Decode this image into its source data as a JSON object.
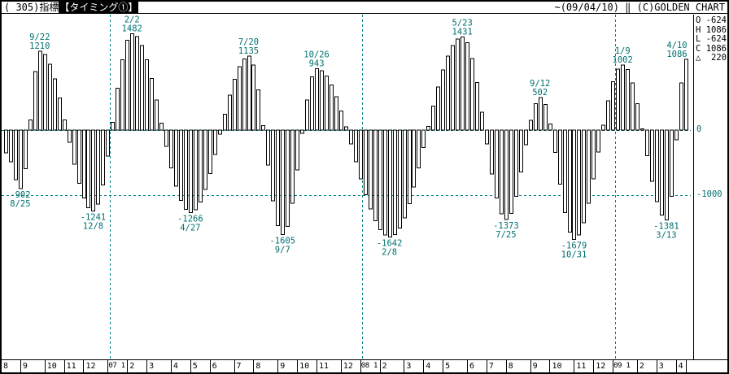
{
  "title_bar": {
    "left_prefix": "( 305)指標",
    "left_highlight": "【タイミング①】",
    "right": "~(09/04/10) ‖ (C)GOLDEN CHART"
  },
  "legend": {
    "rows": [
      {
        "key": "O",
        "value": "-624"
      },
      {
        "key": "H",
        "value": "1086"
      },
      {
        "key": "L",
        "value": "-624"
      },
      {
        "key": "C",
        "value": "1086"
      },
      {
        "key": "△",
        "value": "220"
      }
    ]
  },
  "chart_data": {
    "type": "bar",
    "title": "( 305)指標【タイミング①】",
    "period_end": "09/04/10",
    "frequency": "weekly",
    "grid": "dashed at 0 and -1000, dashed vertical lines at year starts",
    "legend_position": "top-right outside plot",
    "y_axis_labels": [
      {
        "text": "0",
        "value": 0
      },
      {
        "text": "-1000",
        "value": -1000
      }
    ],
    "h_gridlines": [
      0,
      -1000
    ],
    "bar_count": 141,
    "interpolation": "cosine-between-turning-points",
    "turning_points": [
      {
        "i": 0,
        "v": -350
      },
      {
        "i": 3,
        "v": -902,
        "date": "8/25"
      },
      {
        "i": 7,
        "v": 1210,
        "date": "9/22"
      },
      {
        "i": 18,
        "v": -1241,
        "date": "12/8"
      },
      {
        "i": 26,
        "v": 1482,
        "date": "2/2"
      },
      {
        "i": 38,
        "v": -1266,
        "date": "4/27"
      },
      {
        "i": 50,
        "v": 1135,
        "date": "7/20"
      },
      {
        "i": 57,
        "v": -1605,
        "date": "9/7"
      },
      {
        "i": 64,
        "v": 943,
        "date": "10/26"
      },
      {
        "i": 79,
        "v": -1642,
        "date": "2/8"
      },
      {
        "i": 94,
        "v": 1431,
        "date": "5/23"
      },
      {
        "i": 103,
        "v": -1373,
        "date": "7/25"
      },
      {
        "i": 110,
        "v": 502,
        "date": "9/12"
      },
      {
        "i": 117,
        "v": -1679,
        "date": "10/31"
      },
      {
        "i": 127,
        "v": 1002,
        "date": "1/9"
      },
      {
        "i": 136,
        "v": -1381,
        "date": "3/13"
      },
      {
        "i": 140,
        "v": 1086,
        "date": "4/10"
      }
    ],
    "months": [
      {
        "label": "8",
        "weeks": 4
      },
      {
        "label": "9",
        "weeks": 5
      },
      {
        "label": "10",
        "weeks": 4
      },
      {
        "label": "11",
        "weeks": 4
      },
      {
        "label": "12",
        "weeks": 5
      },
      {
        "label": "1",
        "year": "07",
        "weeks": 4
      },
      {
        "label": "2",
        "weeks": 4
      },
      {
        "label": "3",
        "weeks": 5
      },
      {
        "label": "4",
        "weeks": 4
      },
      {
        "label": "5",
        "weeks": 4
      },
      {
        "label": "6",
        "weeks": 5
      },
      {
        "label": "7",
        "weeks": 4
      },
      {
        "label": "8",
        "weeks": 5
      },
      {
        "label": "9",
        "weeks": 4
      },
      {
        "label": "10",
        "weeks": 4
      },
      {
        "label": "11",
        "weeks": 5
      },
      {
        "label": "12",
        "weeks": 4
      },
      {
        "label": "1",
        "year": "08",
        "weeks": 4
      },
      {
        "label": "2",
        "weeks": 5
      },
      {
        "label": "3",
        "weeks": 4
      },
      {
        "label": "4",
        "weeks": 4
      },
      {
        "label": "5",
        "weeks": 5
      },
      {
        "label": "6",
        "weeks": 4
      },
      {
        "label": "7",
        "weeks": 4
      },
      {
        "label": "8",
        "weeks": 5
      },
      {
        "label": "9",
        "weeks": 4
      },
      {
        "label": "10",
        "weeks": 5
      },
      {
        "label": "11",
        "weeks": 4
      },
      {
        "label": "12",
        "weeks": 4
      },
      {
        "label": "1",
        "year": "09",
        "weeks": 5
      },
      {
        "label": "2",
        "weeks": 4
      },
      {
        "label": "3",
        "weeks": 4
      },
      {
        "label": "4",
        "weeks": 2
      }
    ],
    "colors": {
      "annotation": "#007070",
      "grid": "#008080",
      "bar_fill": "#ffffff",
      "bar_stroke": "#000000",
      "frame": "#000000"
    }
  }
}
